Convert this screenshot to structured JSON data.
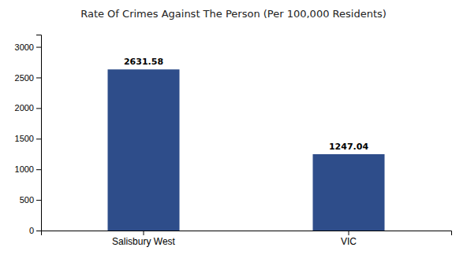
{
  "chart_data": {
    "type": "bar",
    "title": "Rate Of Crimes Against The Person (Per 100,000 Residents)",
    "categories": [
      "Salisbury West",
      "VIC"
    ],
    "values": [
      2631.58,
      1247.04
    ],
    "color": "#2e4d8a",
    "ylim": [
      0,
      3200
    ],
    "yticks": [
      0,
      500,
      1000,
      1500,
      2000,
      2500,
      3000
    ],
    "grid": false,
    "data_labels": true
  }
}
